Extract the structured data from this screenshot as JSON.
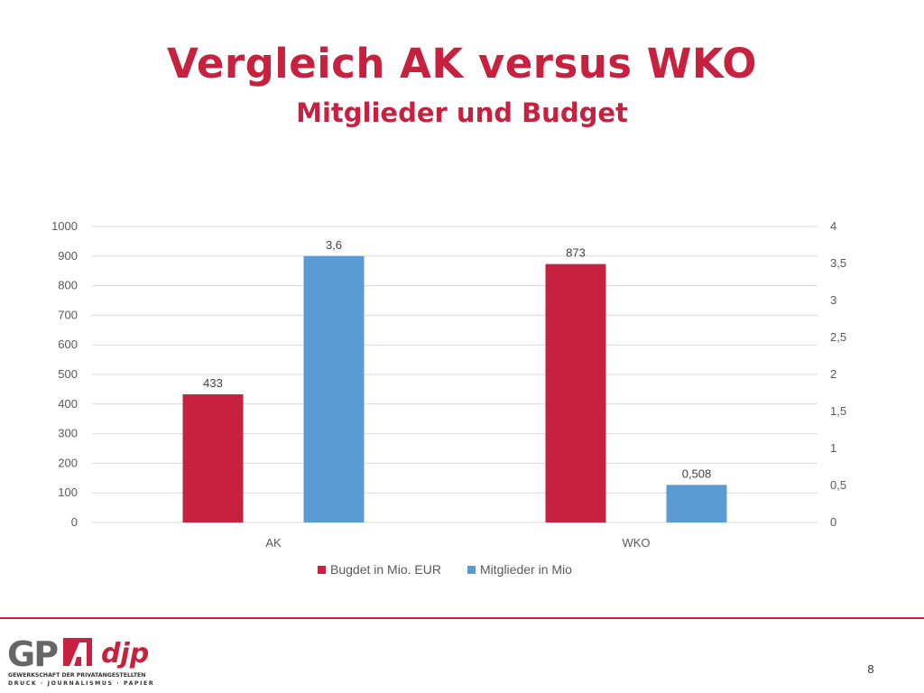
{
  "slide": {
    "title": "Vergleich AK versus WKO",
    "subtitle": "Mitglieder und Budget",
    "page_number": "8"
  },
  "logo": {
    "wordmark": "GPA",
    "second_wordmark": "djp",
    "tagline_1": "GEWERKSCHAFT DER PRIVATANGESTELLTEN",
    "tagline_2": "DRUCK · JOURNALISMUS · PAPIER"
  },
  "chart_data": {
    "type": "bar",
    "categories": [
      "AK",
      "WKO"
    ],
    "series": [
      {
        "name": "Bugdet in Mio. EUR",
        "axis": "left",
        "color": "#c8213f",
        "values": [
          433,
          873
        ],
        "labels": [
          "433",
          "873"
        ]
      },
      {
        "name": "Mitglieder in Mio",
        "axis": "right",
        "color": "#5b9bd5",
        "values": [
          3.6,
          0.508
        ],
        "labels": [
          "3,6",
          "0,508"
        ]
      }
    ],
    "y_left": {
      "min": 0,
      "max": 1000,
      "ticks": [
        "0",
        "100",
        "200",
        "300",
        "400",
        "500",
        "600",
        "700",
        "800",
        "900",
        "1000"
      ]
    },
    "y_right": {
      "min": 0,
      "max": 4,
      "ticks": [
        "0",
        "0,5",
        "1",
        "1,5",
        "2",
        "2,5",
        "3",
        "3,5",
        "4"
      ]
    },
    "grid": true,
    "legend": "bottom"
  }
}
